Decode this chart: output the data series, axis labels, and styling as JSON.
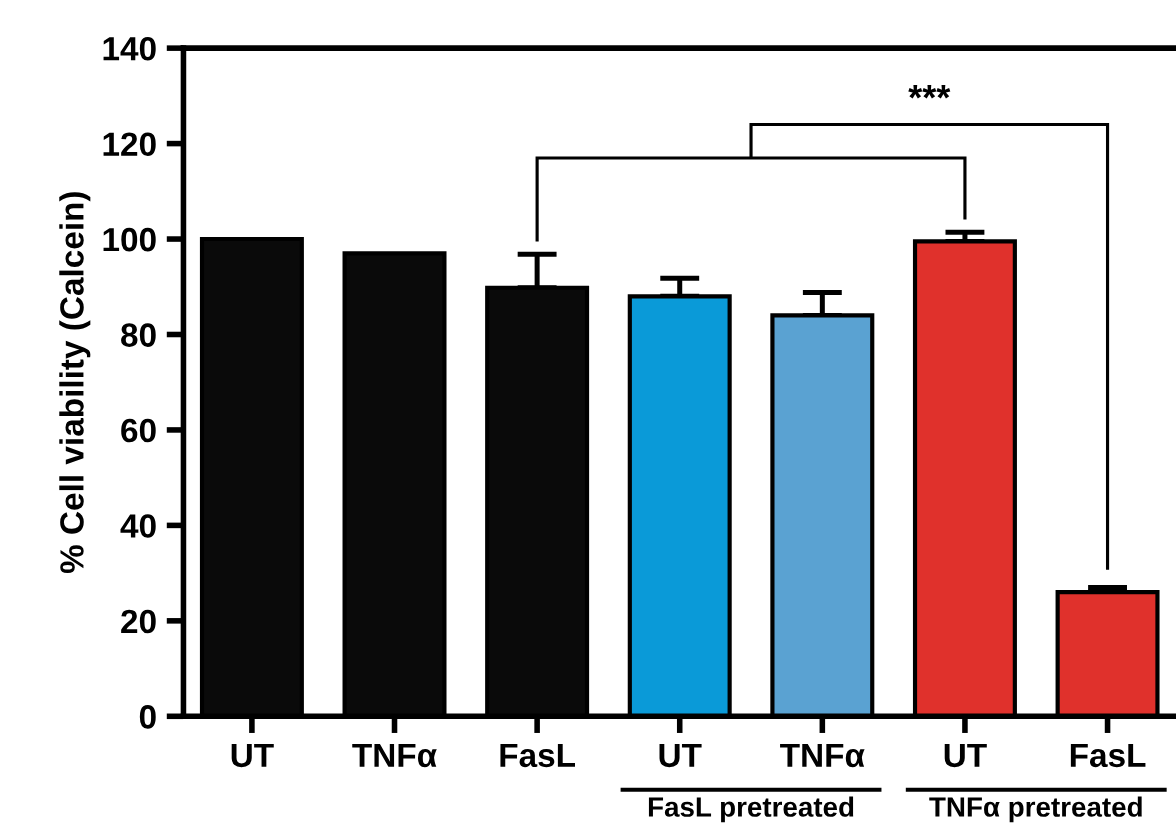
{
  "chart_data": {
    "type": "bar",
    "ylabel": "% Cell viability (Calcein)",
    "categories": [
      "UT",
      "TNFα",
      "FasL",
      "UT",
      "TNFα",
      "UT",
      "FasL"
    ],
    "values": [
      100,
      97,
      89.8,
      88,
      84,
      99.5,
      26
    ],
    "colors": [
      "#0a0a0a",
      "#0a0a0a",
      "#0a0a0a",
      "#0a9ad8",
      "#5aa2d2",
      "#e0312c",
      "#e0312c"
    ],
    "errors": [
      null,
      null,
      [
        89.8,
        96.8
      ],
      [
        88,
        91.8
      ],
      [
        84,
        88.8
      ],
      [
        99.5,
        101.4
      ],
      [
        26,
        27
      ]
    ],
    "ylim": [
      0,
      140
    ],
    "yticks": [
      0,
      20,
      40,
      60,
      80,
      100,
      120,
      140
    ],
    "annotations": [
      "***",
      "FasL pretreated",
      "TNFα pretreated"
    ],
    "grid": false,
    "legend": false
  }
}
